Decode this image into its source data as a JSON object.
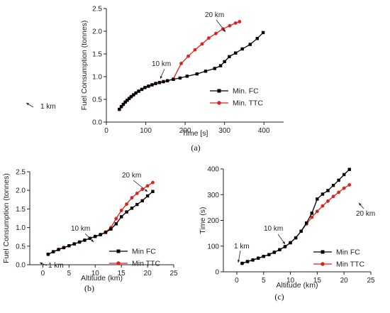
{
  "chart_data": [
    {
      "type": "line",
      "panel_label": "(a)",
      "title": "",
      "xlabel": "Time [s]",
      "ylabel": "Fuel Consumption (tonnes)",
      "xlim": [
        0,
        450
      ],
      "ylim": [
        0,
        2.5
      ],
      "xticks": [
        0,
        100,
        200,
        300,
        400
      ],
      "yticks": [
        0.0,
        0.5,
        1.0,
        1.5,
        2.0,
        2.5
      ],
      "legend_position": "right",
      "series": [
        {
          "name": "Min. FC",
          "color": "#000000",
          "marker": "square",
          "x": [
            33,
            38,
            43,
            48,
            53,
            58,
            63,
            69,
            75,
            82,
            90,
            98,
            107,
            116,
            125,
            135,
            145,
            155,
            170,
            187,
            205,
            230,
            252,
            275,
            290,
            300,
            312,
            328,
            345,
            365,
            383,
            398
          ],
          "y": [
            0.28,
            0.34,
            0.39,
            0.44,
            0.48,
            0.52,
            0.56,
            0.6,
            0.64,
            0.68,
            0.72,
            0.76,
            0.79,
            0.82,
            0.85,
            0.87,
            0.89,
            0.91,
            0.94,
            0.97,
            1.01,
            1.06,
            1.12,
            1.18,
            1.24,
            1.33,
            1.44,
            1.52,
            1.61,
            1.71,
            1.84,
            1.97
          ]
        },
        {
          "name": "Min. TTC",
          "color": "#e0201b",
          "marker": "circle",
          "x": [
            33,
            38,
            43,
            48,
            53,
            58,
            63,
            69,
            75,
            82,
            90,
            98,
            107,
            116,
            125,
            135,
            145,
            155,
            170,
            190,
            208,
            225,
            243,
            260,
            278,
            296,
            313,
            328,
            338
          ],
          "y": [
            0.28,
            0.34,
            0.39,
            0.44,
            0.48,
            0.52,
            0.56,
            0.6,
            0.64,
            0.68,
            0.72,
            0.76,
            0.79,
            0.82,
            0.85,
            0.87,
            0.89,
            0.91,
            0.95,
            1.29,
            1.45,
            1.59,
            1.72,
            1.85,
            1.95,
            2.05,
            2.12,
            2.18,
            2.21
          ]
        }
      ],
      "annotations": [
        {
          "text": "1 km",
          "x": 38,
          "y": 0.28
        },
        {
          "text": "10 km",
          "x": 108,
          "y": 0.8
        },
        {
          "text": "20 km",
          "x": 327,
          "y": 1.96
        }
      ]
    },
    {
      "type": "line",
      "panel_label": "(b)",
      "title": "",
      "xlabel": "Altitude (km)",
      "ylabel": "Fuel Consumption (tonnes)",
      "xlim": [
        -2.5,
        25
      ],
      "ylim": [
        0,
        2.5
      ],
      "xticks": [
        0,
        5,
        10,
        15,
        20,
        25
      ],
      "yticks": [
        0.0,
        0.5,
        1.0,
        1.5,
        2.0,
        2.5
      ],
      "legend_position": "bottom-right",
      "series": [
        {
          "name": "Min FC",
          "color": "#000000",
          "marker": "square",
          "x": [
            1,
            2,
            3,
            4,
            5,
            6,
            7,
            8,
            9,
            10,
            11,
            12,
            13,
            14,
            15,
            16,
            17,
            18,
            19,
            20,
            21
          ],
          "y": [
            0.28,
            0.35,
            0.41,
            0.46,
            0.51,
            0.56,
            0.61,
            0.66,
            0.71,
            0.76,
            0.81,
            0.87,
            0.96,
            1.1,
            1.29,
            1.42,
            1.52,
            1.62,
            1.72,
            1.85,
            1.97
          ]
        },
        {
          "name": "Min TTC",
          "color": "#e0201b",
          "marker": "circle",
          "x": [
            1,
            2,
            3,
            4,
            5,
            6,
            7,
            8,
            9,
            10,
            11,
            12,
            13,
            14,
            15,
            16,
            17,
            18,
            19,
            20,
            21
          ],
          "y": [
            0.28,
            0.35,
            0.41,
            0.46,
            0.51,
            0.56,
            0.61,
            0.66,
            0.71,
            0.76,
            0.81,
            0.88,
            1.0,
            1.24,
            1.46,
            1.63,
            1.8,
            1.92,
            2.03,
            2.12,
            2.21
          ]
        }
      ],
      "annotations": [
        {
          "text": "1 km",
          "x": 1,
          "y": 0.28
        },
        {
          "text": "10 km",
          "x": 11.8,
          "y": 0.85
        },
        {
          "text": "20 km",
          "x": 20.5,
          "y": 1.9
        }
      ]
    },
    {
      "type": "line",
      "panel_label": "(c)",
      "title": "",
      "xlabel": "Altitude (km)",
      "ylabel": "Time (s)",
      "xlim": [
        -2.5,
        25
      ],
      "ylim": [
        0,
        400
      ],
      "xticks": [
        0,
        5,
        10,
        15,
        20,
        25
      ],
      "yticks": [
        0,
        100,
        200,
        300,
        400
      ],
      "legend_position": "bottom-right",
      "series": [
        {
          "name": "Min FC",
          "color": "#000000",
          "marker": "square",
          "x": [
            1,
            2,
            3,
            4,
            5,
            6,
            7,
            8,
            9,
            10,
            11,
            12,
            13,
            14,
            15,
            16,
            17,
            18,
            19,
            20,
            21
          ],
          "y": [
            33,
            40,
            46,
            53,
            60,
            67,
            76,
            86,
            98,
            113,
            132,
            158,
            190,
            228,
            283,
            302,
            316,
            336,
            356,
            378,
            398
          ]
        },
        {
          "name": "Min TTC",
          "color": "#e0201b",
          "marker": "circle",
          "x": [
            1,
            2,
            3,
            4,
            5,
            6,
            7,
            8,
            9,
            10,
            11,
            12,
            13,
            14,
            15,
            16,
            17,
            18,
            19,
            20,
            21
          ],
          "y": [
            33,
            40,
            46,
            53,
            60,
            67,
            76,
            86,
            98,
            113,
            132,
            158,
            186,
            212,
            235,
            256,
            275,
            293,
            309,
            325,
            338
          ]
        }
      ],
      "annotations": [
        {
          "text": "1 km",
          "x": 1,
          "y": 33
        },
        {
          "text": "10 km",
          "x": 10,
          "y": 113
        },
        {
          "text": "20 km",
          "x": 20.5,
          "y": 330
        }
      ]
    }
  ]
}
